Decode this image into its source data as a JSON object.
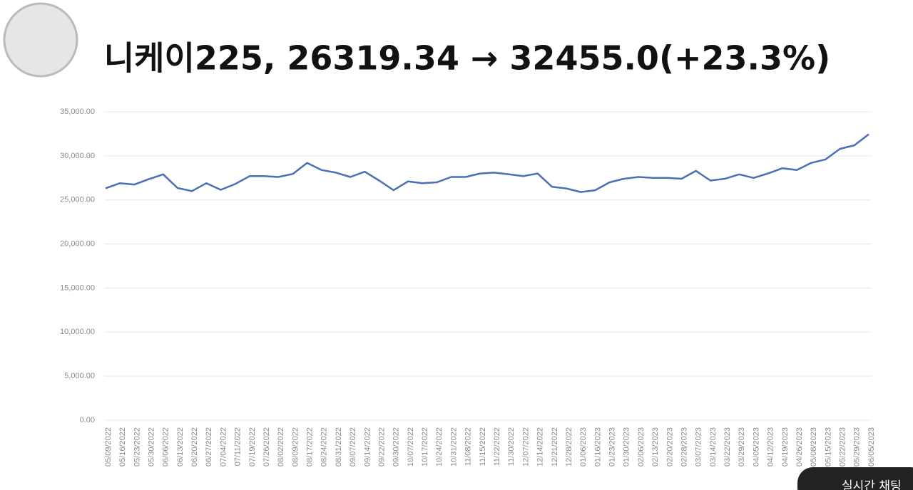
{
  "chart_data": {
    "type": "line",
    "title": "니케이225, 26319.34 → 32455.0(+23.3%)",
    "categories": [
      "05/09/2022",
      "05/16/2022",
      "05/23/2022",
      "05/30/2022",
      "06/06/2022",
      "06/13/2022",
      "06/20/2022",
      "06/27/2022",
      "07/04/2022",
      "07/11/2022",
      "07/19/2022",
      "07/26/2022",
      "08/02/2022",
      "08/09/2022",
      "08/17/2022",
      "08/24/2022",
      "08/31/2022",
      "09/07/2022",
      "09/14/2022",
      "09/22/2022",
      "09/30/2022",
      "10/07/2022",
      "10/17/2022",
      "10/24/2022",
      "10/31/2022",
      "11/08/2022",
      "11/15/2022",
      "11/22/2022",
      "11/30/2022",
      "12/07/2022",
      "12/14/2022",
      "12/21/2022",
      "12/28/2022",
      "01/06/2023",
      "01/16/2023",
      "01/23/2023",
      "01/30/2023",
      "02/06/2023",
      "02/13/2023",
      "02/20/2023",
      "02/28/2023",
      "03/07/2023",
      "03/14/2023",
      "03/22/2023",
      "03/29/2023",
      "04/05/2023",
      "04/12/2023",
      "04/19/2023",
      "04/26/2023",
      "05/08/2023",
      "05/15/2023",
      "05/22/2023",
      "05/29/2023",
      "06/05/2023"
    ],
    "values": [
      26319.34,
      26900,
      26750,
      27350,
      27900,
      26350,
      26000,
      26900,
      26150,
      26800,
      27700,
      27700,
      27600,
      27950,
      29200,
      28400,
      28100,
      27600,
      28200,
      27200,
      26100,
      27100,
      26900,
      27000,
      27600,
      27600,
      28000,
      28100,
      27900,
      27700,
      28000,
      26500,
      26300,
      25900,
      26100,
      27000,
      27400,
      27600,
      27500,
      27500,
      27400,
      28300,
      27200,
      27400,
      27900,
      27500,
      28000,
      28600,
      28400,
      29200,
      29600,
      30800,
      31200,
      32455.0
    ],
    "color": "#4a6fb5",
    "ylim": [
      0,
      35000
    ],
    "yticks": [
      {
        "value": 0,
        "label": "0.00"
      },
      {
        "value": 5000,
        "label": "5,000.00"
      },
      {
        "value": 10000,
        "label": "10,000.00"
      },
      {
        "value": 15000,
        "label": "15,000.00"
      },
      {
        "value": 20000,
        "label": "20,000.00"
      },
      {
        "value": 25000,
        "label": "25,000.00"
      },
      {
        "value": 30000,
        "label": "30,000.00"
      },
      {
        "value": 35000,
        "label": "35,000.00"
      }
    ],
    "grid": true
  },
  "overlay": {
    "chat_button": "실시간 채팅"
  }
}
